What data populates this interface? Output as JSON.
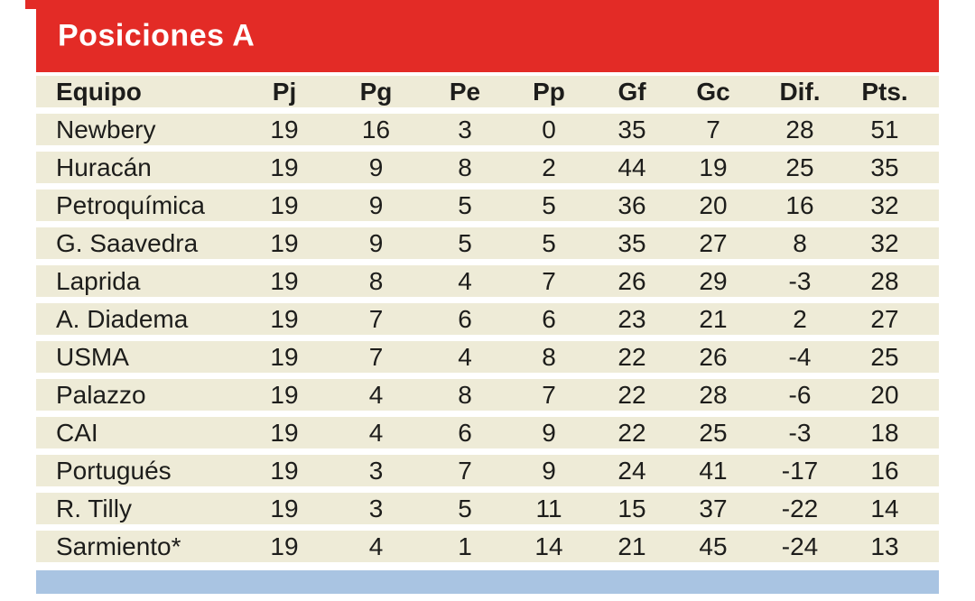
{
  "title": "Posiciones A",
  "colors": {
    "accent_red": "#e32b26",
    "row_cream": "#eeebd7",
    "footer_blue": "#a9c4e2",
    "text": "#1d1d1b",
    "title_text": "#ffffff"
  },
  "chart_data": {
    "type": "table",
    "title": "Posiciones A",
    "columns": [
      "Equipo",
      "Pj",
      "Pg",
      "Pe",
      "Pp",
      "Gf",
      "Gc",
      "Dif.",
      "Pts."
    ],
    "rows": [
      [
        "Newbery",
        19,
        16,
        3,
        0,
        35,
        7,
        28,
        51
      ],
      [
        "Huracán",
        19,
        9,
        8,
        2,
        44,
        19,
        25,
        35
      ],
      [
        "Petroquímica",
        19,
        9,
        5,
        5,
        36,
        20,
        16,
        32
      ],
      [
        "G. Saavedra",
        19,
        9,
        5,
        5,
        35,
        27,
        8,
        32
      ],
      [
        "Laprida",
        19,
        8,
        4,
        7,
        26,
        29,
        -3,
        28
      ],
      [
        "A. Diadema",
        19,
        7,
        6,
        6,
        23,
        21,
        2,
        27
      ],
      [
        "USMA",
        19,
        7,
        4,
        8,
        22,
        26,
        -4,
        25
      ],
      [
        "Palazzo",
        19,
        4,
        8,
        7,
        22,
        28,
        -6,
        20
      ],
      [
        "CAI",
        19,
        4,
        6,
        9,
        22,
        25,
        -3,
        18
      ],
      [
        "Portugués",
        19,
        3,
        7,
        9,
        24,
        41,
        -17,
        16
      ],
      [
        "R. Tilly",
        19,
        3,
        5,
        11,
        15,
        37,
        -22,
        14
      ],
      [
        "Sarmiento*",
        19,
        4,
        1,
        14,
        21,
        45,
        -24,
        13
      ]
    ],
    "legend_position": "none",
    "grid": false
  }
}
